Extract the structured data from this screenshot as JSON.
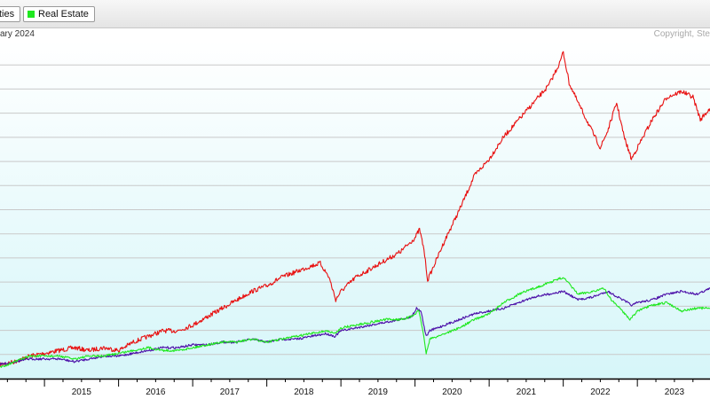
{
  "legend": {
    "items": [
      {
        "label": "ties",
        "color": "#4b0fa8"
      },
      {
        "label": "Real Estate",
        "color": "#1fe81f"
      }
    ]
  },
  "header": {
    "subtitle": "ary 2024",
    "copyright": "Copyright, Ste"
  },
  "chart_data": {
    "type": "line",
    "title": "",
    "xlabel": "",
    "ylabel": "",
    "x_ticks": [
      "2015",
      "2016",
      "2017",
      "2018",
      "2019",
      "2020",
      "2021",
      "2022",
      "2023"
    ],
    "xlim": [
      2014.4,
      2023.98
    ],
    "ylim": [
      0,
      120
    ],
    "grid": true,
    "series": [
      {
        "color": "#e81010",
        "points": [
          [
            2014.4,
            5
          ],
          [
            2014.6,
            6
          ],
          [
            2014.8,
            8
          ],
          [
            2015.0,
            9
          ],
          [
            2015.2,
            10
          ],
          [
            2015.4,
            11
          ],
          [
            2015.6,
            10
          ],
          [
            2015.8,
            11
          ],
          [
            2016.0,
            10
          ],
          [
            2016.2,
            13
          ],
          [
            2016.4,
            15
          ],
          [
            2016.6,
            17
          ],
          [
            2016.8,
            17
          ],
          [
            2017.0,
            19
          ],
          [
            2017.2,
            22
          ],
          [
            2017.4,
            25
          ],
          [
            2017.6,
            28
          ],
          [
            2017.8,
            31
          ],
          [
            2018.0,
            33
          ],
          [
            2018.2,
            36
          ],
          [
            2018.4,
            38
          ],
          [
            2018.6,
            40
          ],
          [
            2018.72,
            41
          ],
          [
            2018.84,
            36
          ],
          [
            2018.93,
            28
          ],
          [
            2019.0,
            31
          ],
          [
            2019.2,
            36
          ],
          [
            2019.4,
            39
          ],
          [
            2019.6,
            42
          ],
          [
            2019.8,
            45
          ],
          [
            2020.0,
            50
          ],
          [
            2020.06,
            53
          ],
          [
            2020.12,
            46
          ],
          [
            2020.17,
            35
          ],
          [
            2020.22,
            38
          ],
          [
            2020.4,
            49
          ],
          [
            2020.6,
            60
          ],
          [
            2020.8,
            72
          ],
          [
            2021.0,
            78
          ],
          [
            2021.2,
            86
          ],
          [
            2021.4,
            92
          ],
          [
            2021.6,
            98
          ],
          [
            2021.8,
            104
          ],
          [
            2021.95,
            112
          ],
          [
            2022.0,
            116
          ],
          [
            2022.08,
            105
          ],
          [
            2022.2,
            98
          ],
          [
            2022.35,
            90
          ],
          [
            2022.5,
            82
          ],
          [
            2022.6,
            88
          ],
          [
            2022.72,
            98
          ],
          [
            2022.82,
            86
          ],
          [
            2022.92,
            78
          ],
          [
            2023.0,
            82
          ],
          [
            2023.2,
            92
          ],
          [
            2023.4,
            100
          ],
          [
            2023.6,
            102
          ],
          [
            2023.75,
            100
          ],
          [
            2023.85,
            92
          ],
          [
            2023.98,
            96
          ]
        ]
      },
      {
        "name": "ties",
        "color": "#4b0fa8",
        "points": [
          [
            2014.4,
            5
          ],
          [
            2014.6,
            6
          ],
          [
            2014.8,
            7
          ],
          [
            2015.0,
            7
          ],
          [
            2015.2,
            7
          ],
          [
            2015.4,
            6
          ],
          [
            2015.6,
            7
          ],
          [
            2015.8,
            8
          ],
          [
            2016.0,
            8
          ],
          [
            2016.2,
            9
          ],
          [
            2016.4,
            10
          ],
          [
            2016.6,
            11
          ],
          [
            2016.8,
            11
          ],
          [
            2017.0,
            12
          ],
          [
            2017.2,
            12
          ],
          [
            2017.4,
            13
          ],
          [
            2017.6,
            13
          ],
          [
            2017.8,
            14
          ],
          [
            2018.0,
            13
          ],
          [
            2018.2,
            14
          ],
          [
            2018.4,
            14
          ],
          [
            2018.6,
            15
          ],
          [
            2018.8,
            16
          ],
          [
            2018.92,
            15
          ],
          [
            2019.0,
            17
          ],
          [
            2019.2,
            18
          ],
          [
            2019.4,
            19
          ],
          [
            2019.6,
            20
          ],
          [
            2019.8,
            21
          ],
          [
            2019.95,
            22
          ],
          [
            2020.02,
            25
          ],
          [
            2020.08,
            24
          ],
          [
            2020.15,
            15
          ],
          [
            2020.2,
            17
          ],
          [
            2020.4,
            19
          ],
          [
            2020.6,
            21
          ],
          [
            2020.8,
            23
          ],
          [
            2021.0,
            24
          ],
          [
            2021.2,
            25
          ],
          [
            2021.4,
            27
          ],
          [
            2021.6,
            29
          ],
          [
            2021.8,
            30
          ],
          [
            2022.0,
            31
          ],
          [
            2022.2,
            28
          ],
          [
            2022.4,
            29
          ],
          [
            2022.6,
            31
          ],
          [
            2022.8,
            28
          ],
          [
            2022.93,
            26
          ],
          [
            2023.0,
            27
          ],
          [
            2023.2,
            28
          ],
          [
            2023.4,
            30
          ],
          [
            2023.6,
            31
          ],
          [
            2023.8,
            30
          ],
          [
            2023.98,
            32
          ]
        ]
      },
      {
        "name": "Real Estate",
        "color": "#1fe81f",
        "points": [
          [
            2014.4,
            4
          ],
          [
            2014.6,
            6
          ],
          [
            2014.8,
            8
          ],
          [
            2015.0,
            8
          ],
          [
            2015.2,
            8
          ],
          [
            2015.4,
            7
          ],
          [
            2015.6,
            8
          ],
          [
            2015.8,
            8
          ],
          [
            2016.0,
            9
          ],
          [
            2016.2,
            10
          ],
          [
            2016.4,
            11
          ],
          [
            2016.6,
            10
          ],
          [
            2016.8,
            10
          ],
          [
            2017.0,
            11
          ],
          [
            2017.2,
            12
          ],
          [
            2017.4,
            13
          ],
          [
            2017.6,
            13
          ],
          [
            2017.8,
            14
          ],
          [
            2018.0,
            13
          ],
          [
            2018.2,
            14
          ],
          [
            2018.4,
            15
          ],
          [
            2018.6,
            16
          ],
          [
            2018.8,
            17
          ],
          [
            2018.92,
            16
          ],
          [
            2019.0,
            18
          ],
          [
            2019.2,
            19
          ],
          [
            2019.4,
            20
          ],
          [
            2019.6,
            21
          ],
          [
            2019.8,
            21
          ],
          [
            2019.95,
            22
          ],
          [
            2020.05,
            24
          ],
          [
            2020.1,
            18
          ],
          [
            2020.15,
            9
          ],
          [
            2020.2,
            14
          ],
          [
            2020.4,
            16
          ],
          [
            2020.6,
            18
          ],
          [
            2020.8,
            21
          ],
          [
            2021.0,
            23
          ],
          [
            2021.2,
            27
          ],
          [
            2021.4,
            30
          ],
          [
            2021.6,
            32
          ],
          [
            2021.8,
            34
          ],
          [
            2022.0,
            36
          ],
          [
            2022.2,
            30
          ],
          [
            2022.4,
            31
          ],
          [
            2022.55,
            32
          ],
          [
            2022.65,
            28
          ],
          [
            2022.8,
            24
          ],
          [
            2022.9,
            21
          ],
          [
            2023.0,
            24
          ],
          [
            2023.2,
            26
          ],
          [
            2023.4,
            27
          ],
          [
            2023.6,
            24
          ],
          [
            2023.8,
            25
          ],
          [
            2023.98,
            25
          ]
        ]
      }
    ]
  }
}
